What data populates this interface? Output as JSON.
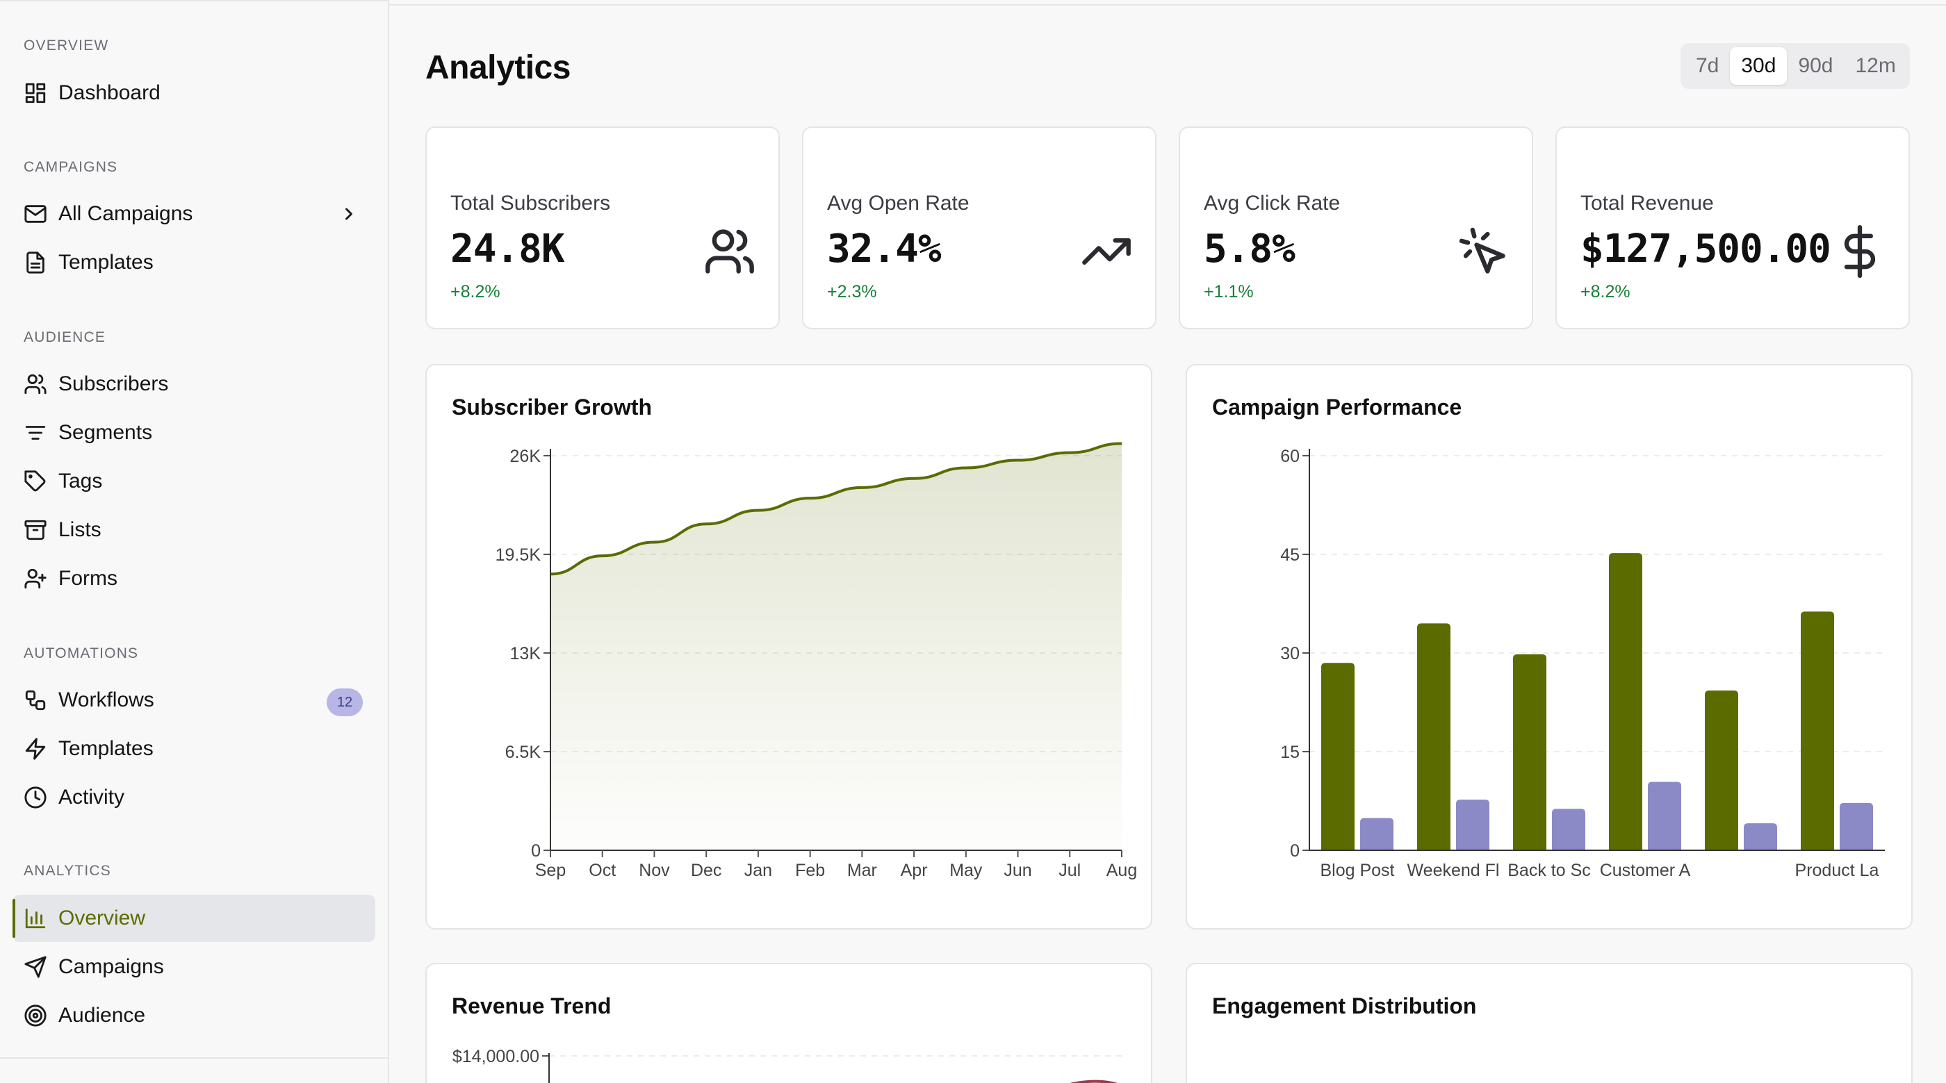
{
  "sidebar": {
    "sections": [
      {
        "title": "OVERVIEW",
        "items": [
          {
            "label": "Dashboard",
            "icon": "dashboard-icon"
          }
        ]
      },
      {
        "title": "CAMPAIGNS",
        "items": [
          {
            "label": "All Campaigns",
            "icon": "mail-icon"
          },
          {
            "label": "Templates",
            "icon": "document-icon"
          }
        ]
      },
      {
        "title": "AUDIENCE",
        "items": [
          {
            "label": "Subscribers",
            "icon": "users-icon"
          },
          {
            "label": "Segments",
            "icon": "filter-icon"
          },
          {
            "label": "Tags",
            "icon": "tag-icon"
          },
          {
            "label": "Lists",
            "icon": "archive-icon"
          },
          {
            "label": "Forms",
            "icon": "user-plus-icon"
          }
        ]
      },
      {
        "title": "AUTOMATIONS",
        "items": [
          {
            "label": "Workflows",
            "icon": "workflow-icon",
            "badge": "12"
          },
          {
            "label": "Templates",
            "icon": "zap-icon"
          },
          {
            "label": "Activity",
            "icon": "clock-icon"
          }
        ]
      },
      {
        "title": "ANALYTICS",
        "items": [
          {
            "label": "Overview",
            "icon": "bar-chart-icon",
            "active": true
          },
          {
            "label": "Campaigns",
            "icon": "send-icon"
          },
          {
            "label": "Audience",
            "icon": "target-icon"
          }
        ]
      }
    ]
  },
  "header": {
    "title": "Analytics",
    "ranges": [
      "7d",
      "30d",
      "90d",
      "12m"
    ],
    "selected_range": "30d"
  },
  "stats": [
    {
      "label": "Total Subscribers",
      "value": "24.8K",
      "delta": "+8.2%",
      "icon": "users-icon"
    },
    {
      "label": "Avg Open Rate",
      "value": "32.4%",
      "delta": "+2.3%",
      "icon": "trending-up-icon"
    },
    {
      "label": "Avg Click Rate",
      "value": "5.8%",
      "delta": "+1.1%",
      "icon": "pointer-click-icon"
    },
    {
      "label": "Total Revenue",
      "value": "$127,500.00",
      "delta": "+8.2%",
      "icon": "dollar-icon"
    }
  ],
  "colors": {
    "olive": "#5c6b00",
    "lavender": "#8b89c6",
    "positive": "#178038"
  },
  "chart_data": [
    {
      "type": "area",
      "title": "Subscriber Growth",
      "categories": [
        "Sep",
        "Oct",
        "Nov",
        "Dec",
        "Jan",
        "Feb",
        "Mar",
        "Apr",
        "May",
        "Jun",
        "Jul",
        "Aug"
      ],
      "values": [
        18200,
        19400,
        20300,
        21500,
        22400,
        23200,
        23900,
        24500,
        25200,
        25700,
        26200,
        26800
      ],
      "yticks": [
        "0",
        "6.5K",
        "13K",
        "19.5K",
        "26K"
      ],
      "ylim": [
        0,
        26000
      ],
      "grid": true
    },
    {
      "type": "bar",
      "title": "Campaign Performance",
      "categories": [
        "Blog Post",
        "Weekend Fl",
        "Back to Sc",
        "Customer A",
        "",
        "Product La"
      ],
      "series": [
        {
          "values": [
            28.5,
            34.5,
            29.8,
            45.2,
            24.3,
            36.3
          ]
        },
        {
          "values": [
            4.9,
            7.7,
            6.3,
            10.4,
            4.1,
            7.2
          ]
        }
      ],
      "yticks": [
        "0",
        "15",
        "30",
        "45",
        "60"
      ],
      "ylim": [
        0,
        60
      ],
      "grid": true
    },
    {
      "type": "line",
      "title": "Revenue Trend",
      "yticks": [
        "$14,000.00"
      ]
    },
    {
      "type": "pie",
      "title": "Engagement Distribution"
    }
  ]
}
